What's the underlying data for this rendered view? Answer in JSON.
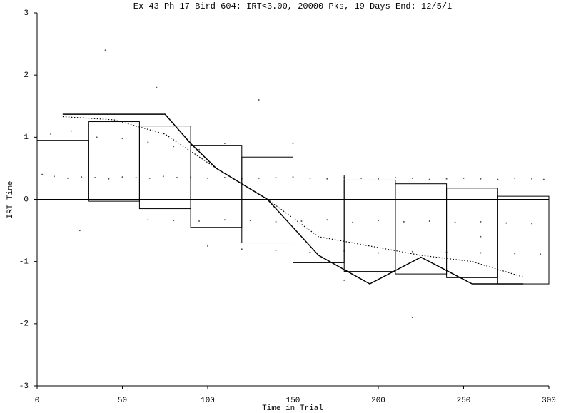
{
  "chart_data": {
    "type": "scatter",
    "title": "Ex 43 Ph 17 Bird 604: IRT<3.00, 20000 Pks, 19 Days End: 12/5/1",
    "x_label": "Time in Trial",
    "y_label": "IRT Time",
    "xlim": [
      0,
      300
    ],
    "ylim": [
      -3,
      3
    ],
    "xticks": [
      0,
      50,
      100,
      150,
      200,
      250,
      300
    ],
    "yticks": [
      -3,
      -2,
      -1,
      0,
      1,
      2,
      3
    ],
    "color": "#000000",
    "bins": [
      0,
      30,
      60,
      90,
      120,
      150,
      180,
      210,
      240,
      270,
      300
    ],
    "box_tops": [
      0.95,
      1.25,
      1.18,
      0.87,
      0.68,
      0.39,
      0.31,
      0.25,
      0.18,
      0.05
    ],
    "box_bottoms": [
      0,
      -0.03,
      -0.15,
      -0.45,
      -0.7,
      -1.02,
      -1.16,
      -1.2,
      -1.26,
      -1.36
    ],
    "lines": [
      {
        "style": "solid",
        "x": [
          15,
          75,
          90,
          105,
          135,
          165,
          195,
          225,
          255,
          285
        ],
        "values": [
          1.37,
          1.37,
          0.9,
          0.5,
          0.0,
          -0.9,
          -1.36,
          -0.93,
          -1.36,
          -1.36
        ]
      },
      {
        "style": "dotted",
        "x": [
          15,
          45,
          75,
          105,
          135,
          165,
          195,
          225,
          255,
          285
        ],
        "values": [
          1.33,
          1.28,
          1.05,
          0.5,
          0.0,
          -0.6,
          -0.75,
          -0.9,
          -1.0,
          -1.25
        ]
      }
    ],
    "points": {
      "x": [
        3,
        10,
        18,
        26,
        34,
        42,
        50,
        58,
        66,
        74,
        82,
        90,
        100,
        110,
        120,
        130,
        140,
        150,
        160,
        170,
        180,
        190,
        200,
        210,
        220,
        230,
        240,
        250,
        260,
        270,
        280,
        290,
        297,
        65,
        80,
        95,
        110,
        125,
        140,
        155,
        170,
        185,
        200,
        215,
        230,
        245,
        260,
        275,
        290,
        100,
        120,
        140,
        160,
        180,
        200,
        220,
        240,
        260,
        280,
        295,
        8,
        20,
        35,
        50,
        65,
        80,
        95,
        110,
        40,
        130,
        220,
        25,
        180,
        260,
        150,
        70
      ],
      "values": [
        0.4,
        0.37,
        0.34,
        0.36,
        0.35,
        0.33,
        0.36,
        0.35,
        0.34,
        0.37,
        0.35,
        0.36,
        0.34,
        0.35,
        0.33,
        0.34,
        0.35,
        0.36,
        0.34,
        0.33,
        0.35,
        0.34,
        0.33,
        0.35,
        0.34,
        0.32,
        0.33,
        0.34,
        0.33,
        0.32,
        0.34,
        0.33,
        0.32,
        -0.33,
        -0.34,
        -0.35,
        -0.33,
        -0.34,
        -0.36,
        -0.35,
        -0.33,
        -0.37,
        -0.34,
        -0.36,
        -0.35,
        -0.37,
        -0.36,
        -0.38,
        -0.39,
        -0.75,
        -0.8,
        -0.82,
        -0.85,
        -0.83,
        -0.86,
        -0.84,
        -0.85,
        -0.86,
        -0.87,
        -0.88,
        1.05,
        1.1,
        1.0,
        0.98,
        0.92,
        0.85,
        0.8,
        0.9,
        2.4,
        1.6,
        -1.9,
        -0.5,
        -1.3,
        -0.6,
        0.9,
        1.8
      ]
    }
  }
}
